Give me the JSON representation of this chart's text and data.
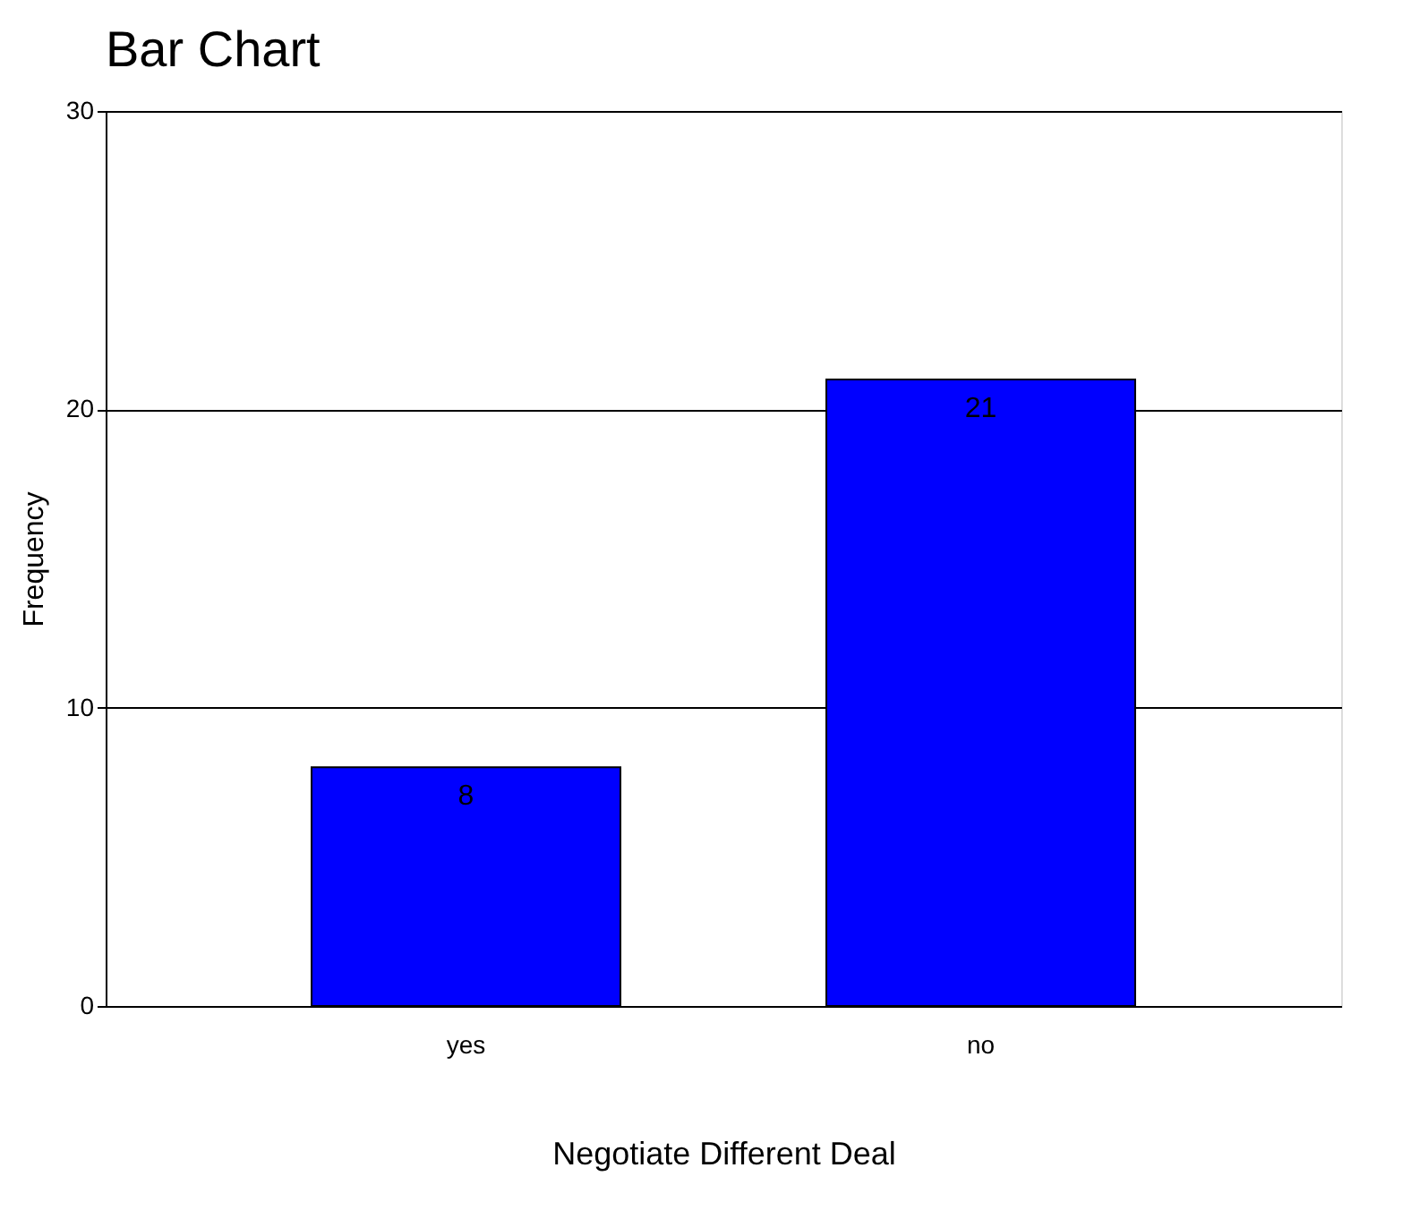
{
  "chart_data": {
    "type": "bar",
    "title": "Bar Chart",
    "xlabel": "Negotiate Different Deal",
    "ylabel": "Frequency",
    "categories": [
      "yes",
      "no"
    ],
    "values": [
      8,
      21
    ],
    "color": "#0000ff",
    "ylim": [
      0,
      30
    ],
    "yticks": [
      0,
      10,
      20,
      30
    ],
    "grid": "y",
    "data_labels": true
  }
}
